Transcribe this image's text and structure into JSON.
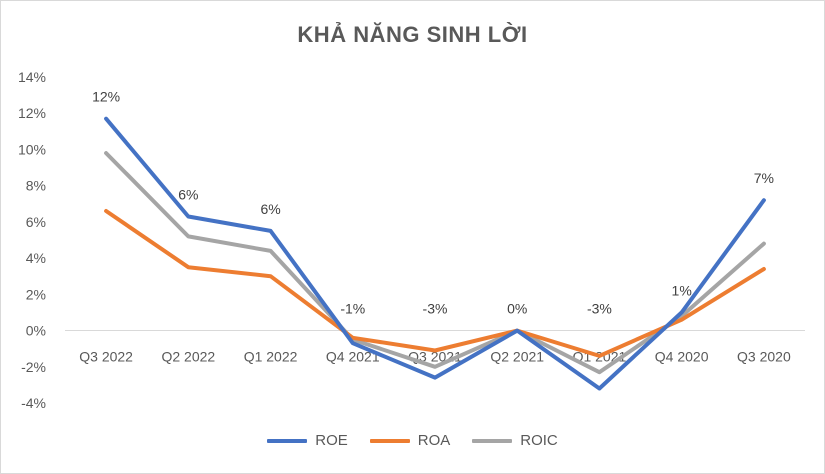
{
  "chart_data": {
    "type": "line",
    "title": "KHẢ NĂNG SINH LỜI",
    "categories": [
      "Q3 2022",
      "Q2 2022",
      "Q1 2022",
      "Q4 2021",
      "Q3 2021",
      "Q2 2021",
      "Q1 2021",
      "Q4 2020",
      "Q3 2020"
    ],
    "ylim": [
      -4,
      14
    ],
    "yticks": [
      "14%",
      "12%",
      "10%",
      "8%",
      "6%",
      "4%",
      "2%",
      "0%",
      "-2%",
      "-4%"
    ],
    "grid": false,
    "legend_position": "bottom",
    "series": [
      {
        "name": "ROE",
        "color": "#4472c4",
        "values": [
          11.7,
          6.3,
          5.5,
          -0.7,
          -2.6,
          0.0,
          -3.2,
          1.0,
          7.2
        ],
        "labels": [
          "12%",
          "6%",
          "6%",
          "-1%",
          "-3%",
          "0%",
          "-3%",
          "1%",
          "7%"
        ]
      },
      {
        "name": "ROA",
        "color": "#ed7d31",
        "values": [
          6.6,
          3.5,
          3.0,
          -0.4,
          -1.1,
          0.0,
          -1.4,
          0.6,
          3.4
        ]
      },
      {
        "name": "ROIC",
        "color": "#a5a5a5",
        "values": [
          9.8,
          5.2,
          4.4,
          -0.5,
          -2.0,
          0.0,
          -2.3,
          0.8,
          4.8
        ]
      }
    ]
  }
}
